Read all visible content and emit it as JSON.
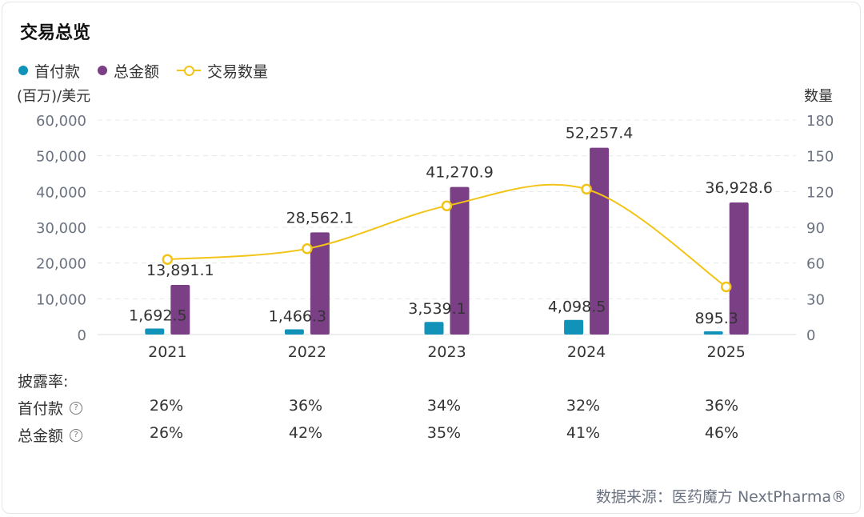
{
  "header": {
    "title": "交易总览"
  },
  "legend": [
    {
      "label": "首付款",
      "color": "#1192b8",
      "kind": "dot"
    },
    {
      "label": "总金额",
      "color": "#7b3f86",
      "kind": "dot"
    },
    {
      "label": "交易数量",
      "color": "#f2c418",
      "kind": "line"
    }
  ],
  "axes": {
    "left_unit": "(百万)/美元",
    "right_unit": "数量"
  },
  "chart_data": {
    "type": "bar",
    "categories": [
      "2021",
      "2022",
      "2023",
      "2024",
      "2025"
    ],
    "series": [
      {
        "name": "首付款",
        "type": "bar",
        "axis": "left",
        "color": "#1192b8",
        "values": [
          1692.5,
          1466.3,
          3539.1,
          4098.5,
          895.3
        ],
        "labels": [
          "1,692.5",
          "1,466.3",
          "3,539.1",
          "4,098.5",
          "895.3"
        ]
      },
      {
        "name": "总金额",
        "type": "bar",
        "axis": "left",
        "color": "#7b3f86",
        "values": [
          13891.1,
          28562.1,
          41270.9,
          52257.4,
          36928.6
        ],
        "labels": [
          "13,891.1",
          "28,562.1",
          "41,270.9",
          "52,257.4",
          "36,928.6"
        ]
      },
      {
        "name": "交易数量",
        "type": "line",
        "axis": "right",
        "color": "#f2c418",
        "values": [
          63,
          72,
          108,
          122,
          40
        ]
      }
    ],
    "y_left": {
      "min": 0,
      "max": 60000,
      "ticks": [
        "0",
        "10,000",
        "20,000",
        "30,000",
        "40,000",
        "50,000",
        "60,000"
      ]
    },
    "y_right": {
      "min": 0,
      "max": 180,
      "ticks": [
        "0",
        "30",
        "60",
        "90",
        "120",
        "150",
        "180"
      ]
    },
    "grid": true
  },
  "disclosure": {
    "label": "披露率:",
    "rows": [
      {
        "label": "首付款",
        "values": [
          "26%",
          "36%",
          "34%",
          "32%",
          "36%"
        ]
      },
      {
        "label": "总金额",
        "values": [
          "26%",
          "42%",
          "35%",
          "41%",
          "46%"
        ]
      }
    ],
    "help_glyph": "?"
  },
  "footer": {
    "source": "数据来源：医药魔方 NextPharma®"
  }
}
